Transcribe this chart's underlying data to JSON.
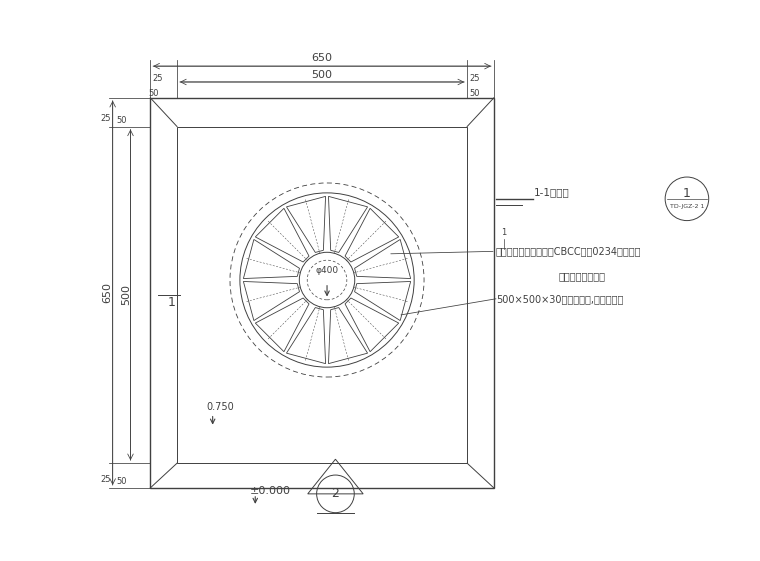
{
  "bg_color": "#ffffff",
  "line_color": "#404040",
  "annotation_1": "铸铝灯体，喷深咖色（CBCC编号0234）氟碳漆",
  "annotation_2": "厂家二次深化设计",
  "annotation_3": "500×500×30光面黄金麻,按尺寸切割",
  "label_1_1": "1-1剖面图",
  "label_ref": "TD-JGZ-2 1",
  "elev_label": "±0.000",
  "dim_text_1400": "φ400",
  "dim_text_0750": "0.750"
}
